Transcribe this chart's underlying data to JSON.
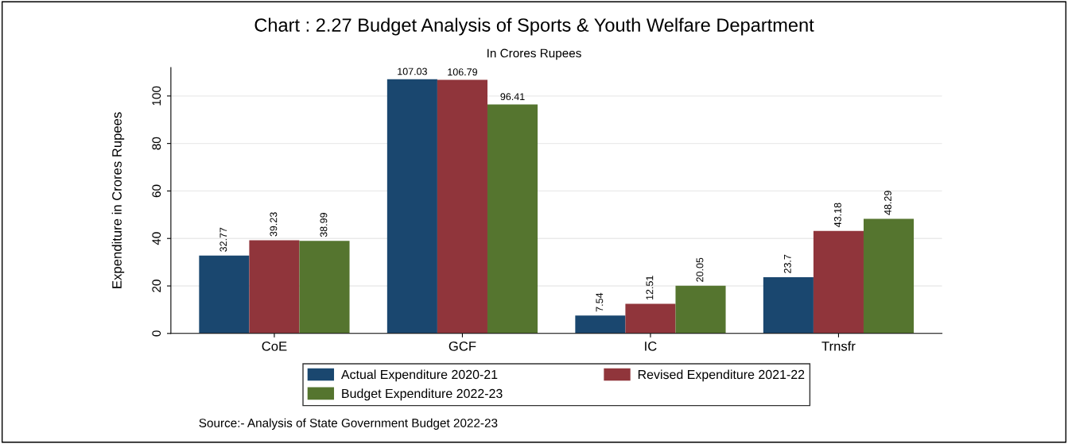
{
  "chart_data": {
    "type": "bar",
    "title": "Chart : 2.27 Budget Analysis of Sports & Youth Welfare Department",
    "subtitle": "In Crores Rupees",
    "ylabel": "Expenditure in Crores Rupees",
    "categories": [
      "CoE",
      "GCF",
      "IC",
      "Trnsfr"
    ],
    "series": [
      {
        "name": "Actual Expenditure 2020-21",
        "color": "#1a476f",
        "values": [
          32.77,
          107.03,
          7.54,
          23.7
        ]
      },
      {
        "name": "Revised Expenditure 2021-22",
        "color": "#90353b",
        "values": [
          39.23,
          106.79,
          12.51,
          43.18
        ]
      },
      {
        "name": "Budget Expenditure 2022-23",
        "color": "#55752f",
        "values": [
          38.99,
          96.41,
          20.05,
          48.29
        ]
      }
    ],
    "ylim": [
      0,
      112
    ],
    "yticks": [
      0,
      20,
      40,
      60,
      80,
      100
    ],
    "grid": "y",
    "legend": "bottom",
    "data_labels": true,
    "annotations": [
      "Source:- Analysis of State Government Budget 2022-23"
    ]
  }
}
